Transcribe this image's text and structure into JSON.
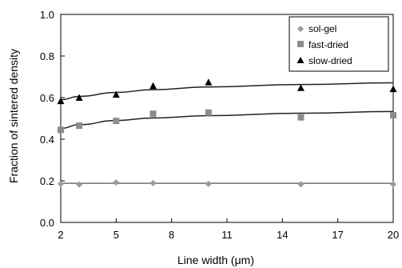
{
  "chart_data": {
    "type": "scatter",
    "xlabel": "Line width (μm)",
    "ylabel": "Fraction of sintered density",
    "xlim": [
      2,
      20
    ],
    "ylim": [
      0.0,
      1.0
    ],
    "xticks": [
      2,
      5,
      8,
      11,
      14,
      17,
      20
    ],
    "xtick_labels": [
      "2",
      "5",
      "8",
      "11",
      "14",
      "17",
      "20"
    ],
    "yticks": [
      0.0,
      0.2,
      0.4,
      0.6,
      0.8,
      1.0
    ],
    "ytick_labels": [
      "0.0",
      "0.2",
      "0.4",
      "0.6",
      "0.8",
      "1.0"
    ],
    "grid": false,
    "legend_position": "top-right",
    "series": [
      {
        "name": "sol-gel",
        "marker": "diamond",
        "color": "#9a9a9a",
        "x": [
          2,
          3,
          5,
          7,
          10,
          15,
          20
        ],
        "y": [
          0.185,
          0.182,
          0.192,
          0.189,
          0.185,
          0.183,
          0.183
        ],
        "fit": {
          "x": [
            2,
            20
          ],
          "y": [
            0.188,
            0.188
          ]
        }
      },
      {
        "name": "fast-dried",
        "marker": "square",
        "color": "#8c8c8c",
        "x": [
          2,
          3,
          5,
          7,
          10,
          15,
          20
        ],
        "y": [
          0.445,
          0.465,
          0.488,
          0.522,
          0.528,
          0.505,
          0.515
        ],
        "fit": {
          "x": [
            2,
            3,
            5,
            7,
            10,
            15,
            20
          ],
          "y": [
            0.452,
            0.47,
            0.49,
            0.502,
            0.513,
            0.525,
            0.533
          ]
        }
      },
      {
        "name": "slow-dried",
        "marker": "triangle",
        "color": "#000000",
        "x": [
          2,
          3,
          5,
          7,
          10,
          15,
          20
        ],
        "y": [
          0.582,
          0.598,
          0.613,
          0.655,
          0.672,
          0.645,
          0.64
        ],
        "fit": {
          "x": [
            2,
            3,
            5,
            7,
            10,
            15,
            20
          ],
          "y": [
            0.59,
            0.606,
            0.625,
            0.638,
            0.651,
            0.663,
            0.671
          ]
        }
      }
    ]
  }
}
